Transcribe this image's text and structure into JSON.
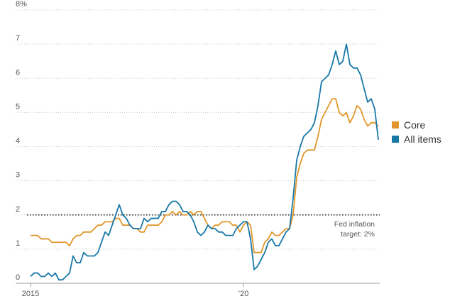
{
  "chart_data": {
    "type": "line",
    "categories": [
      "2015",
      null,
      null,
      null,
      null,
      null,
      null,
      null,
      null,
      null,
      null,
      null,
      null,
      null,
      null,
      null,
      null,
      null,
      null,
      null,
      null,
      null,
      null,
      null,
      null,
      null,
      null,
      null,
      null,
      null,
      null,
      null,
      null,
      null,
      null,
      null,
      null,
      null,
      null,
      null,
      null,
      null,
      null,
      null,
      null,
      null,
      null,
      null,
      null,
      null,
      null,
      null,
      null,
      null,
      null,
      null,
      null,
      null,
      null,
      null,
      "’20",
      null,
      null,
      null,
      null,
      null,
      null,
      null,
      null,
      null,
      null,
      null,
      null,
      null,
      null,
      null,
      null,
      null,
      null,
      null,
      null,
      null,
      null,
      null,
      null,
      null,
      null,
      null,
      null,
      null,
      null,
      null,
      null,
      null,
      null,
      null,
      null,
      null,
      null
    ],
    "series": [
      {
        "name": "Core",
        "color": "#e0962a",
        "values": [
          1.4,
          1.4,
          1.4,
          1.3,
          1.3,
          1.3,
          1.2,
          1.2,
          1.2,
          1.2,
          1.2,
          1.1,
          1.3,
          1.4,
          1.4,
          1.5,
          1.5,
          1.5,
          1.6,
          1.7,
          1.7,
          1.8,
          1.8,
          1.8,
          1.9,
          1.9,
          1.7,
          1.7,
          1.7,
          1.6,
          1.6,
          1.5,
          1.5,
          1.7,
          1.7,
          1.7,
          1.7,
          1.8,
          2.0,
          2.0,
          2.1,
          2.0,
          2.1,
          2.0,
          2.0,
          2.1,
          2.0,
          2.1,
          2.1,
          1.9,
          1.7,
          1.6,
          1.7,
          1.7,
          1.8,
          1.8,
          1.8,
          1.7,
          1.7,
          1.5,
          1.7,
          1.8,
          1.7,
          0.9,
          0.9,
          0.9,
          1.2,
          1.3,
          1.5,
          1.4,
          1.4,
          1.5,
          1.6,
          1.6,
          2.0,
          3.1,
          3.5,
          3.8,
          3.9,
          3.9,
          3.9,
          4.3,
          4.8,
          5.0,
          5.2,
          5.4,
          5.4,
          5.0,
          4.9,
          5.0,
          4.7,
          4.9,
          5.2,
          5.1,
          4.8,
          4.6,
          4.7,
          4.7,
          4.6
        ]
      },
      {
        "name": "All items",
        "color": "#1878a8",
        "values": [
          0.2,
          0.3,
          0.3,
          0.2,
          0.2,
          0.3,
          0.2,
          0.3,
          0.1,
          0.1,
          0.2,
          0.3,
          0.8,
          0.6,
          0.6,
          0.9,
          0.8,
          0.8,
          0.8,
          0.9,
          1.2,
          1.5,
          1.4,
          1.7,
          2.0,
          2.3,
          2.0,
          1.9,
          1.7,
          1.6,
          1.6,
          1.6,
          1.9,
          1.8,
          1.9,
          1.9,
          1.9,
          2.1,
          2.1,
          2.3,
          2.4,
          2.4,
          2.3,
          2.1,
          2.1,
          2.0,
          1.8,
          1.5,
          1.4,
          1.5,
          1.7,
          1.6,
          1.6,
          1.5,
          1.5,
          1.4,
          1.4,
          1.4,
          1.6,
          1.7,
          1.8,
          1.8,
          1.3,
          0.4,
          0.5,
          0.7,
          0.9,
          1.2,
          1.3,
          1.1,
          1.1,
          1.3,
          1.5,
          1.6,
          2.5,
          3.6,
          4.0,
          4.3,
          4.4,
          4.5,
          4.7,
          5.2,
          5.9,
          6.0,
          6.1,
          6.4,
          6.8,
          6.4,
          6.5,
          7.0,
          6.4,
          6.3,
          6.3,
          6.1,
          5.7,
          5.3,
          5.4,
          5.1,
          4.2
        ]
      }
    ],
    "ylim": [
      0,
      8
    ],
    "yticks": [
      0,
      1,
      2,
      3,
      4,
      5,
      6,
      7,
      {
        "value": 8,
        "label": "8%"
      }
    ],
    "grid": true,
    "reference_line": {
      "value": 2,
      "label": [
        "Fed inflation",
        "target: 2%"
      ]
    },
    "legend": "right"
  }
}
